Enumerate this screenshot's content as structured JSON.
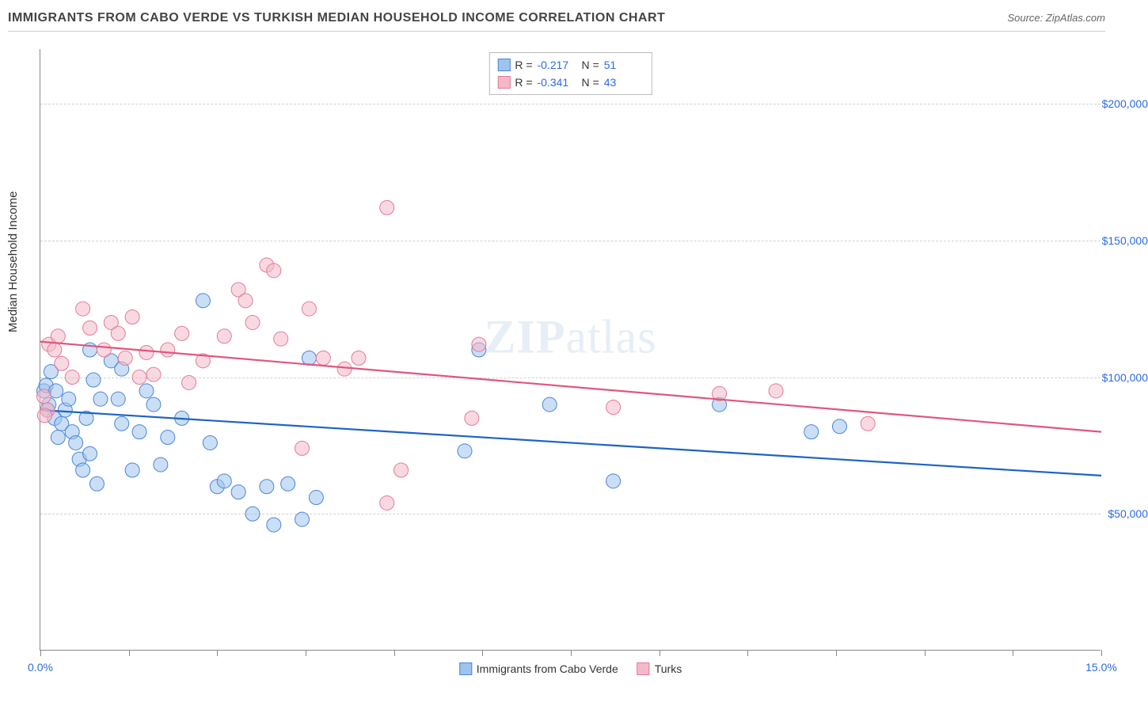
{
  "header": {
    "title": "IMMIGRANTS FROM CABO VERDE VS TURKISH MEDIAN HOUSEHOLD INCOME CORRELATION CHART",
    "source_label": "Source: ",
    "source_name": "ZipAtlas.com"
  },
  "chart": {
    "type": "scatter",
    "ylabel": "Median Household Income",
    "xlim": [
      0,
      15
    ],
    "ylim": [
      0,
      220000
    ],
    "ytick_values": [
      50000,
      100000,
      150000,
      200000
    ],
    "ytick_labels": [
      "$50,000",
      "$100,000",
      "$150,000",
      "$200,000"
    ],
    "xtick_positions": [
      0,
      1.25,
      2.5,
      3.75,
      5.0,
      6.25,
      7.5,
      8.75,
      10.0,
      11.25,
      12.5,
      13.75,
      15.0
    ],
    "xtick_labels": {
      "0": "0.0%",
      "15": "15.0%"
    },
    "background_color": "#ffffff",
    "grid_color": "#d0d0d0",
    "marker_radius": 9,
    "marker_opacity": 0.55,
    "line_width": 2.2,
    "watermark": "ZIPatlas",
    "series": [
      {
        "name": "Immigrants from Cabo Verde",
        "fill": "#9ec3ed",
        "stroke": "#4a86d8",
        "line_color": "#1e63c4",
        "R_label": "R =",
        "R": "-0.217",
        "N_label": "N =",
        "N": "51",
        "trend": {
          "y0": 88000,
          "y1": 64000
        },
        "points": [
          [
            0.05,
            95000
          ],
          [
            0.08,
            97000
          ],
          [
            0.12,
            90000
          ],
          [
            0.1,
            88000
          ],
          [
            0.15,
            102000
          ],
          [
            0.2,
            85000
          ],
          [
            0.22,
            95000
          ],
          [
            0.25,
            78000
          ],
          [
            0.3,
            83000
          ],
          [
            0.35,
            88000
          ],
          [
            0.4,
            92000
          ],
          [
            0.45,
            80000
          ],
          [
            0.5,
            76000
          ],
          [
            0.55,
            70000
          ],
          [
            0.6,
            66000
          ],
          [
            0.65,
            85000
          ],
          [
            0.7,
            110000
          ],
          [
            0.75,
            99000
          ],
          [
            0.8,
            61000
          ],
          [
            0.85,
            92000
          ],
          [
            0.7,
            72000
          ],
          [
            1.0,
            106000
          ],
          [
            1.1,
            92000
          ],
          [
            1.15,
            103000
          ],
          [
            1.3,
            66000
          ],
          [
            1.15,
            83000
          ],
          [
            1.4,
            80000
          ],
          [
            1.5,
            95000
          ],
          [
            1.6,
            90000
          ],
          [
            1.7,
            68000
          ],
          [
            1.8,
            78000
          ],
          [
            2.0,
            85000
          ],
          [
            2.3,
            128000
          ],
          [
            2.4,
            76000
          ],
          [
            2.5,
            60000
          ],
          [
            2.6,
            62000
          ],
          [
            2.8,
            58000
          ],
          [
            3.0,
            50000
          ],
          [
            3.2,
            60000
          ],
          [
            3.3,
            46000
          ],
          [
            3.5,
            61000
          ],
          [
            3.7,
            48000
          ],
          [
            3.9,
            56000
          ],
          [
            3.8,
            107000
          ],
          [
            6.2,
            110000
          ],
          [
            6.0,
            73000
          ],
          [
            7.2,
            90000
          ],
          [
            8.1,
            62000
          ],
          [
            9.6,
            90000
          ],
          [
            10.9,
            80000
          ],
          [
            11.3,
            82000
          ]
        ]
      },
      {
        "name": "Turks",
        "fill": "#f4b9c8",
        "stroke": "#e47a98",
        "line_color": "#e0577e",
        "R_label": "R =",
        "R": "-0.341",
        "N_label": "N =",
        "N": "43",
        "trend": {
          "y0": 113000,
          "y1": 80000
        },
        "points": [
          [
            0.05,
            93000
          ],
          [
            0.1,
            88000
          ],
          [
            0.12,
            112000
          ],
          [
            0.06,
            86000
          ],
          [
            0.2,
            110000
          ],
          [
            0.25,
            115000
          ],
          [
            0.3,
            105000
          ],
          [
            0.45,
            100000
          ],
          [
            0.6,
            125000
          ],
          [
            0.7,
            118000
          ],
          [
            0.9,
            110000
          ],
          [
            1.0,
            120000
          ],
          [
            1.1,
            116000
          ],
          [
            1.2,
            107000
          ],
          [
            1.3,
            122000
          ],
          [
            1.4,
            100000
          ],
          [
            1.5,
            109000
          ],
          [
            1.6,
            101000
          ],
          [
            1.8,
            110000
          ],
          [
            2.0,
            116000
          ],
          [
            2.1,
            98000
          ],
          [
            2.3,
            106000
          ],
          [
            2.6,
            115000
          ],
          [
            2.8,
            132000
          ],
          [
            2.9,
            128000
          ],
          [
            3.0,
            120000
          ],
          [
            3.2,
            141000
          ],
          [
            3.3,
            139000
          ],
          [
            3.4,
            114000
          ],
          [
            3.7,
            74000
          ],
          [
            3.8,
            125000
          ],
          [
            4.0,
            107000
          ],
          [
            4.3,
            103000
          ],
          [
            4.5,
            107000
          ],
          [
            4.9,
            162000
          ],
          [
            4.9,
            54000
          ],
          [
            5.1,
            66000
          ],
          [
            6.1,
            85000
          ],
          [
            6.2,
            112000
          ],
          [
            8.1,
            89000
          ],
          [
            9.6,
            94000
          ],
          [
            10.4,
            95000
          ],
          [
            11.7,
            83000
          ]
        ]
      }
    ]
  }
}
